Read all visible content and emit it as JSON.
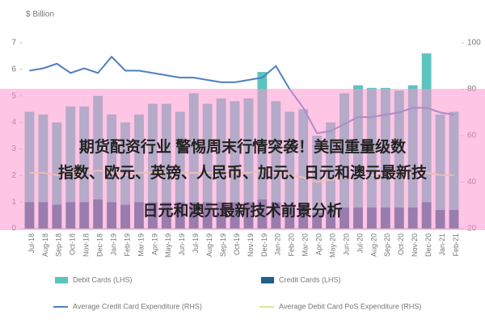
{
  "chart_data": {
    "type": "bar_line",
    "y_label": "$ Billion",
    "categories": [
      "Jul-18",
      "Aug-18",
      "Sep-18",
      "Oct-18",
      "Nov-18",
      "Dec-18",
      "Jan-19",
      "Feb-19",
      "Mar-19",
      "Apr-19",
      "May-19",
      "Jun-19",
      "Jul-19",
      "Aug-19",
      "Sep-19",
      "Oct-19",
      "Nov-19",
      "Dec-19",
      "Jan-20",
      "Feb-20",
      "Mar-20",
      "Apr-20",
      "May-20",
      "Jun-20",
      "Jul-20",
      "Aug-20",
      "Sep-20",
      "Oct-20",
      "Nov-20",
      "Dec-20",
      "Jan-21",
      "Feb-21"
    ],
    "series": [
      {
        "name": "Credit Cards (LHS)",
        "color": "#1f5f8b",
        "kind": "bar",
        "values": [
          1.0,
          1.0,
          0.9,
          1.0,
          1.0,
          1.1,
          1.0,
          0.9,
          1.0,
          1.0,
          1.0,
          1.0,
          1.0,
          1.0,
          1.0,
          1.0,
          1.0,
          1.1,
          1.0,
          0.9,
          0.9,
          0.6,
          0.7,
          0.8,
          0.8,
          0.8,
          0.8,
          0.8,
          0.8,
          1.0,
          0.7,
          0.7
        ]
      },
      {
        "name": "Debit Cards (LHS)",
        "color": "#5bc4bf",
        "kind": "bar",
        "values": [
          3.4,
          3.3,
          3.1,
          3.6,
          3.6,
          3.9,
          3.3,
          3.1,
          3.3,
          3.7,
          3.7,
          3.4,
          4.1,
          3.7,
          3.9,
          3.8,
          3.9,
          4.8,
          3.8,
          3.5,
          3.6,
          2.9,
          3.3,
          4.3,
          4.6,
          4.5,
          4.5,
          4.4,
          4.6,
          5.6,
          3.6,
          3.7
        ]
      },
      {
        "name": "Average Credit Card Expenditure (RHS)",
        "color": "#4f7fc0",
        "kind": "line",
        "axis": "y2",
        "values": [
          88,
          89,
          91,
          87,
          89,
          87,
          94,
          88,
          88,
          87,
          86,
          85,
          85,
          84,
          83,
          83,
          84,
          85,
          90,
          80,
          72,
          61,
          62,
          65,
          68,
          68,
          69,
          70,
          72,
          72,
          70,
          69
        ]
      },
      {
        "name": "Average Debit Card PoS Expenditure (RHS)",
        "color": "#d9e8a0",
        "kind": "line",
        "axis": "y2",
        "values": [
          44,
          44,
          43,
          44,
          44,
          45,
          44,
          43,
          44,
          44,
          44,
          44,
          44,
          44,
          44,
          44,
          44,
          45,
          44,
          43,
          42,
          40,
          41,
          42,
          43,
          43,
          43,
          43,
          44,
          44,
          43,
          43
        ]
      }
    ],
    "ylim": [
      0,
      7
    ],
    "yticks": [
      0,
      1,
      2,
      3,
      4,
      5,
      6,
      7
    ],
    "y2lim": [
      20,
      100
    ],
    "y2ticks": [
      20,
      40,
      60,
      80,
      100
    ]
  },
  "overlay": {
    "lines": [
      "期货配资行业 警惕周末行情突袭！美国重量级数",
      "指数、欧元、英镑、人民币、加元、日元和澳元最新技",
      "日元和澳元最新技术前景分析"
    ]
  }
}
